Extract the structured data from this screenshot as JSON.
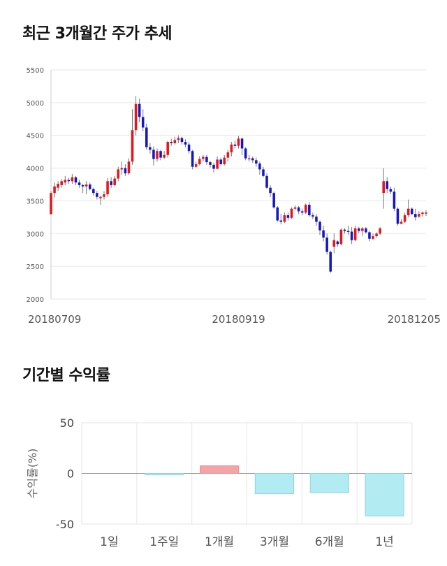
{
  "section1": {
    "title": "최근 3개월간 주가 추세"
  },
  "section2": {
    "title": "기간별 수익률"
  },
  "colors": {
    "up": "#e8141a",
    "down": "#1316c9",
    "positive_bar": "#f4a3a6",
    "negative_bar": "#b2ebf2",
    "negative_bar_edge": "#8fd3df",
    "grid": "#e6e6e6"
  },
  "chart_data": [
    {
      "type": "candlestick",
      "title": "최근 3개월간 주가 추세",
      "ylim": [
        2000,
        5500
      ],
      "yticks": [
        2000,
        2500,
        3000,
        3500,
        4000,
        4500,
        5000,
        5500
      ],
      "x_tick_labels": [
        "20180709",
        "20180919",
        "20181205"
      ],
      "x_tick_indices": [
        0,
        53,
        104
      ],
      "grid": true,
      "candles": [
        [
          3300,
          3620,
          3280,
          3650
        ],
        [
          3620,
          3720,
          3550,
          3780
        ],
        [
          3700,
          3760,
          3650,
          3800
        ],
        [
          3740,
          3800,
          3700,
          3830
        ],
        [
          3780,
          3820,
          3740,
          3880
        ],
        [
          3820,
          3800,
          3760,
          3850
        ],
        [
          3800,
          3860,
          3760,
          3910
        ],
        [
          3860,
          3780,
          3740,
          3880
        ],
        [
          3780,
          3740,
          3700,
          3820
        ],
        [
          3740,
          3720,
          3620,
          3760
        ],
        [
          3720,
          3750,
          3600,
          3800
        ],
        [
          3750,
          3680,
          3660,
          3780
        ],
        [
          3680,
          3620,
          3580,
          3700
        ],
        [
          3620,
          3560,
          3520,
          3650
        ],
        [
          3540,
          3560,
          3440,
          3580
        ],
        [
          3560,
          3600,
          3520,
          3650
        ],
        [
          3600,
          3800,
          3560,
          3850
        ],
        [
          3800,
          3740,
          3700,
          3860
        ],
        [
          3740,
          3840,
          3720,
          3880
        ],
        [
          3840,
          3980,
          3800,
          4020
        ],
        [
          3980,
          4000,
          3900,
          4100
        ],
        [
          4000,
          3920,
          3880,
          4060
        ],
        [
          3920,
          4100,
          3900,
          4150
        ],
        [
          4100,
          4580,
          4050,
          4900
        ],
        [
          4580,
          4980,
          4500,
          5100
        ],
        [
          4980,
          4780,
          4700,
          5060
        ],
        [
          4780,
          4620,
          4560,
          4900
        ],
        [
          4620,
          4320,
          4280,
          4680
        ],
        [
          4320,
          4280,
          4220,
          4380
        ],
        [
          4280,
          4140,
          4040,
          4330
        ],
        [
          4140,
          4260,
          4100,
          4300
        ],
        [
          4260,
          4160,
          4120,
          4280
        ],
        [
          4160,
          4200,
          4140,
          4260
        ],
        [
          4200,
          4400,
          4160,
          4420
        ],
        [
          4400,
          4380,
          4340,
          4450
        ],
        [
          4380,
          4430,
          4360,
          4480
        ],
        [
          4430,
          4460,
          4380,
          4500
        ],
        [
          4460,
          4400,
          4360,
          4480
        ],
        [
          4400,
          4360,
          4320,
          4440
        ],
        [
          4360,
          4260,
          4220,
          4400
        ],
        [
          4260,
          4020,
          3980,
          4280
        ],
        [
          4020,
          4060,
          4000,
          4100
        ],
        [
          4060,
          4140,
          4040,
          4180
        ],
        [
          4140,
          4170,
          4100,
          4200
        ],
        [
          4170,
          4090,
          4050,
          4200
        ],
        [
          4090,
          4050,
          4010,
          4110
        ],
        [
          4050,
          3990,
          3930,
          4080
        ],
        [
          3990,
          4130,
          3980,
          4180
        ],
        [
          4130,
          4060,
          4040,
          4160
        ],
        [
          4060,
          4160,
          4040,
          4200
        ],
        [
          4160,
          4240,
          4100,
          4280
        ],
        [
          4240,
          4360,
          4180,
          4400
        ],
        [
          4360,
          4340,
          4300,
          4420
        ],
        [
          4340,
          4450,
          4300,
          4490
        ],
        [
          4450,
          4300,
          4200,
          4470
        ],
        [
          4300,
          4150,
          4120,
          4320
        ],
        [
          4150,
          4150,
          4100,
          4200
        ],
        [
          4150,
          4120,
          4080,
          4180
        ],
        [
          4120,
          4070,
          4020,
          4160
        ],
        [
          4070,
          3980,
          3900,
          4100
        ],
        [
          3980,
          3880,
          3860,
          4020
        ],
        [
          3880,
          3700,
          3680,
          3920
        ],
        [
          3700,
          3620,
          3560,
          3740
        ],
        [
          3620,
          3400,
          3380,
          3640
        ],
        [
          3400,
          3200,
          3180,
          3420
        ],
        [
          3200,
          3180,
          3140,
          3300
        ],
        [
          3180,
          3280,
          3160,
          3320
        ],
        [
          3280,
          3240,
          3200,
          3320
        ],
        [
          3240,
          3380,
          3220,
          3400
        ],
        [
          3380,
          3400,
          3360,
          3430
        ],
        [
          3400,
          3340,
          3300,
          3420
        ],
        [
          3340,
          3320,
          3280,
          3380
        ],
        [
          3320,
          3440,
          3300,
          3460
        ],
        [
          3440,
          3280,
          3260,
          3480
        ],
        [
          3280,
          3260,
          3220,
          3320
        ],
        [
          3260,
          3180,
          3120,
          3300
        ],
        [
          3180,
          3050,
          2980,
          3200
        ],
        [
          3050,
          2940,
          2880,
          3120
        ],
        [
          2940,
          2720,
          2680,
          3000
        ],
        [
          2720,
          2420,
          2400,
          2740
        ],
        [
          2800,
          2900,
          2700,
          3000
        ],
        [
          2880,
          2840,
          2800,
          2900
        ],
        [
          2840,
          3060,
          2820,
          3080
        ],
        [
          3060,
          3040,
          3000,
          3080
        ],
        [
          3040,
          3030,
          2980,
          3120
        ],
        [
          3030,
          2900,
          2840,
          3100
        ],
        [
          2900,
          3080,
          2880,
          3120
        ],
        [
          3080,
          3040,
          3010,
          3100
        ],
        [
          3040,
          3080,
          2960,
          3100
        ],
        [
          3080,
          3020,
          3000,
          3100
        ],
        [
          3020,
          2920,
          2880,
          3040
        ],
        [
          2920,
          2960,
          2900,
          3000
        ],
        [
          2960,
          3000,
          2940,
          3020
        ],
        [
          3000,
          3080,
          2980,
          3100
        ],
        [
          3620,
          3800,
          3380,
          4000
        ],
        [
          3800,
          3680,
          3620,
          3860
        ],
        [
          3680,
          3640,
          3600,
          3720
        ],
        [
          3640,
          3380,
          3340,
          3700
        ],
        [
          3380,
          3150,
          3120,
          3400
        ],
        [
          3150,
          3180,
          3140,
          3220
        ],
        [
          3180,
          3280,
          3160,
          3320
        ],
        [
          3280,
          3380,
          3250,
          3520
        ],
        [
          3380,
          3300,
          3280,
          3400
        ],
        [
          3300,
          3250,
          3200,
          3380
        ],
        [
          3260,
          3300,
          3240,
          3340
        ],
        [
          3300,
          3320,
          3260,
          3340
        ],
        [
          3320,
          3320,
          3270,
          3360
        ]
      ]
    },
    {
      "type": "bar",
      "title": "기간별 수익률",
      "ylabel": "수익률(%)",
      "ylim": [
        -50,
        50
      ],
      "yticks": [
        50,
        0,
        -50
      ],
      "categories": [
        "1일",
        "1주일",
        "1개월",
        "3개월",
        "6개월",
        "1년"
      ],
      "values": [
        0,
        -1.5,
        7.5,
        -20,
        -19,
        -42
      ],
      "grid": true
    }
  ]
}
